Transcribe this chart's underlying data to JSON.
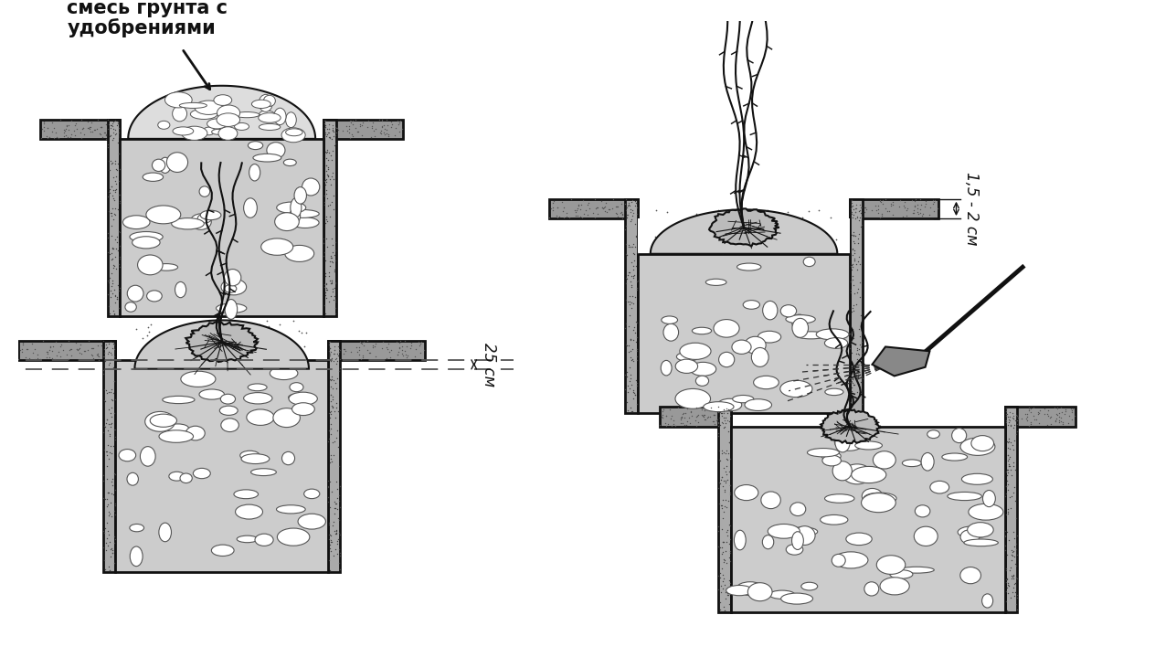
{
  "bg_color": "#ffffff",
  "label_top_left_line1": "смесь грунта с",
  "label_top_left_line2": "удобрениями",
  "label_dim_right": "1,5 - 2 см",
  "label_dim_bottom": "25 см",
  "lc": "#111111",
  "ground_color": "#999999",
  "pit_wall_color": "#888888",
  "stones_bg": "#cccccc",
  "stone_color": "#ffffff",
  "mound_color": "#bbbbbb",
  "soil_stipple": "#777777"
}
